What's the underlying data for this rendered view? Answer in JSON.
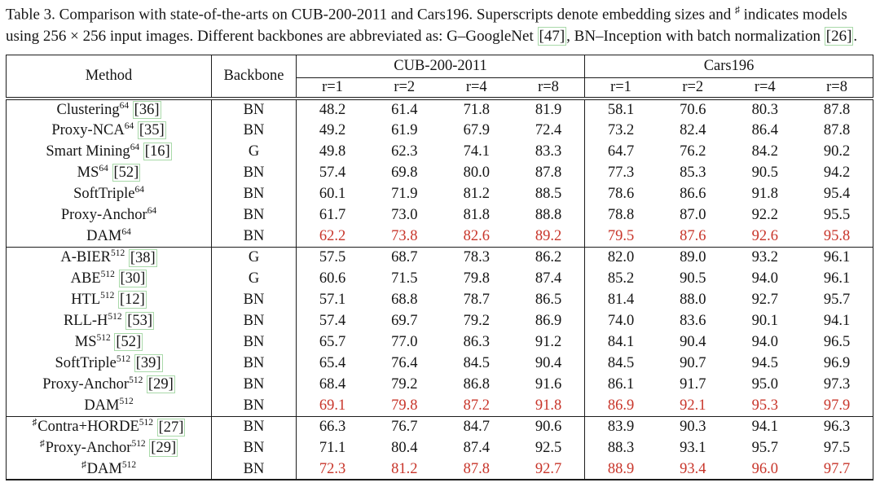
{
  "colors": {
    "line": "#1c1c1c",
    "highlight": "#c8352a",
    "cite_border": "#a9d9a9"
  },
  "caption": {
    "segments": [
      {
        "t": "Table 3. Comparison with state-of-the-arts on CUB-200-2011 and Cars196. Superscripts denote embedding sizes and "
      },
      {
        "sup": "♯"
      },
      {
        "t": " indicates models using 256 × 256 input images. Different backbones are abbreviated as: G–GoogleNet "
      },
      {
        "cite": "[47]"
      },
      {
        "t": ", BN–Inception with batch normalization "
      },
      {
        "cite": "[26]"
      },
      {
        "t": "."
      }
    ]
  },
  "table": {
    "sharp_symbol": "♯",
    "header": {
      "method": "Method",
      "backbone": "Backbone",
      "dataset1": "CUB-200-2011",
      "dataset2": "Cars196",
      "subcols": [
        "r=1",
        "r=2",
        "r=4",
        "r=8"
      ]
    },
    "groups": [
      {
        "rows": [
          {
            "sharp": false,
            "name": "Clustering",
            "sup": "64",
            "cite": "[36]",
            "backbone": "BN",
            "cub": [
              "48.2",
              "61.4",
              "71.8",
              "81.9"
            ],
            "cars": [
              "58.1",
              "70.6",
              "80.3",
              "87.8"
            ],
            "highlight": false
          },
          {
            "sharp": false,
            "name": "Proxy-NCA",
            "sup": "64",
            "cite": "[35]",
            "backbone": "BN",
            "cub": [
              "49.2",
              "61.9",
              "67.9",
              "72.4"
            ],
            "cars": [
              "73.2",
              "82.4",
              "86.4",
              "87.8"
            ],
            "highlight": false
          },
          {
            "sharp": false,
            "name": "Smart Mining",
            "sup": "64",
            "cite": "[16]",
            "backbone": "G",
            "cub": [
              "49.8",
              "62.3",
              "74.1",
              "83.3"
            ],
            "cars": [
              "64.7",
              "76.2",
              "84.2",
              "90.2"
            ],
            "highlight": false
          },
          {
            "sharp": false,
            "name": "MS",
            "sup": "64",
            "cite": "[52]",
            "backbone": "BN",
            "cub": [
              "57.4",
              "69.8",
              "80.0",
              "87.8"
            ],
            "cars": [
              "77.3",
              "85.3",
              "90.5",
              "94.2"
            ],
            "highlight": false
          },
          {
            "sharp": false,
            "name": "SoftTriple",
            "sup": "64",
            "cite": "",
            "backbone": "BN",
            "cub": [
              "60.1",
              "71.9",
              "81.2",
              "88.5"
            ],
            "cars": [
              "78.6",
              "86.6",
              "91.8",
              "95.4"
            ],
            "highlight": false
          },
          {
            "sharp": false,
            "name": "Proxy-Anchor",
            "sup": "64",
            "cite": "",
            "backbone": "BN",
            "cub": [
              "61.7",
              "73.0",
              "81.8",
              "88.8"
            ],
            "cars": [
              "78.8",
              "87.0",
              "92.2",
              "95.5"
            ],
            "highlight": false
          },
          {
            "sharp": false,
            "name": "DAM",
            "sup": "64",
            "cite": "",
            "backbone": "BN",
            "cub": [
              "62.2",
              "73.8",
              "82.6",
              "89.2"
            ],
            "cars": [
              "79.5",
              "87.6",
              "92.6",
              "95.8"
            ],
            "highlight": true
          }
        ]
      },
      {
        "rows": [
          {
            "sharp": false,
            "name": "A-BIER",
            "sup": "512",
            "cite": "[38]",
            "backbone": "G",
            "cub": [
              "57.5",
              "68.7",
              "78.3",
              "86.2"
            ],
            "cars": [
              "82.0",
              "89.0",
              "93.2",
              "96.1"
            ],
            "highlight": false
          },
          {
            "sharp": false,
            "name": "ABE",
            "sup": "512",
            "cite": "[30]",
            "backbone": "G",
            "cub": [
              "60.6",
              "71.5",
              "79.8",
              "87.4"
            ],
            "cars": [
              "85.2",
              "90.5",
              "94.0",
              "96.1"
            ],
            "highlight": false
          },
          {
            "sharp": false,
            "name": "HTL",
            "sup": "512",
            "cite": "[12]",
            "backbone": "BN",
            "cub": [
              "57.1",
              "68.8",
              "78.7",
              "86.5"
            ],
            "cars": [
              "81.4",
              "88.0",
              "92.7",
              "95.7"
            ],
            "highlight": false
          },
          {
            "sharp": false,
            "name": "RLL-H",
            "sup": "512",
            "cite": "[53]",
            "backbone": "BN",
            "cub": [
              "57.4",
              "69.7",
              "79.2",
              "86.9"
            ],
            "cars": [
              "74.0",
              "83.6",
              "90.1",
              "94.1"
            ],
            "highlight": false
          },
          {
            "sharp": false,
            "name": "MS",
            "sup": "512",
            "cite": "[52]",
            "backbone": "BN",
            "cub": [
              "65.7",
              "77.0",
              "86.3",
              "91.2"
            ],
            "cars": [
              "84.1",
              "90.4",
              "94.0",
              "96.5"
            ],
            "highlight": false
          },
          {
            "sharp": false,
            "name": "SoftTriple",
            "sup": "512",
            "cite": "[39]",
            "backbone": "BN",
            "cub": [
              "65.4",
              "76.4",
              "84.5",
              "90.4"
            ],
            "cars": [
              "84.5",
              "90.7",
              "94.5",
              "96.9"
            ],
            "highlight": false
          },
          {
            "sharp": false,
            "name": "Proxy-Anchor",
            "sup": "512",
            "cite": "[29]",
            "backbone": "BN",
            "cub": [
              "68.4",
              "79.2",
              "86.8",
              "91.6"
            ],
            "cars": [
              "86.1",
              "91.7",
              "95.0",
              "97.3"
            ],
            "highlight": false
          },
          {
            "sharp": false,
            "name": "DAM",
            "sup": "512",
            "cite": "",
            "backbone": "BN",
            "cub": [
              "69.1",
              "79.8",
              "87.2",
              "91.8"
            ],
            "cars": [
              "86.9",
              "92.1",
              "95.3",
              "97.9"
            ],
            "highlight": true
          }
        ]
      },
      {
        "rows": [
          {
            "sharp": true,
            "name": "Contra+HORDE",
            "sup": "512",
            "cite": "[27]",
            "backbone": "BN",
            "cub": [
              "66.3",
              "76.7",
              "84.7",
              "90.6"
            ],
            "cars": [
              "83.9",
              "90.3",
              "94.1",
              "96.3"
            ],
            "highlight": false
          },
          {
            "sharp": true,
            "name": "Proxy-Anchor",
            "sup": "512",
            "cite": "[29]",
            "backbone": "BN",
            "cub": [
              "71.1",
              "80.4",
              "87.4",
              "92.5"
            ],
            "cars": [
              "88.3",
              "93.1",
              "95.7",
              "97.5"
            ],
            "highlight": false
          },
          {
            "sharp": true,
            "name": "DAM",
            "sup": "512",
            "cite": "",
            "backbone": "BN",
            "cub": [
              "72.3",
              "81.2",
              "87.8",
              "92.7"
            ],
            "cars": [
              "88.9",
              "93.4",
              "96.0",
              "97.7"
            ],
            "highlight": true
          }
        ]
      }
    ]
  }
}
